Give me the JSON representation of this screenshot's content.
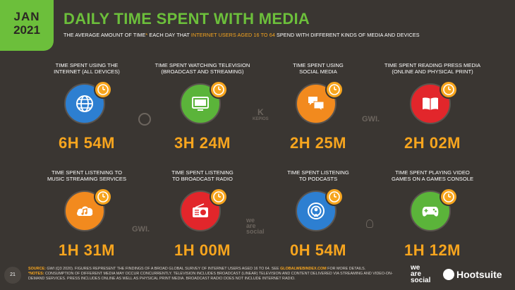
{
  "badge": {
    "month": "JAN",
    "year": "2021"
  },
  "title": "DAILY TIME SPENT WITH MEDIA",
  "subtitle": {
    "part1": "THE AVERAGE AMOUNT OF TIME",
    "asterisk": "*",
    "part2": " EACH DAY THAT ",
    "highlight": "INTERNET USERS AGED 16 TO 64",
    "part3": " SPEND WITH DIFFERENT KINDS OF MEDIA AND DEVICES"
  },
  "colors": {
    "accent": "#f7a51e",
    "green": "#6cbf3b",
    "background": "#3a3632"
  },
  "cards": [
    {
      "label1": "TIME SPENT USING THE",
      "label2": "INTERNET (ALL DEVICES)",
      "value": "6H 54M",
      "icon": "globe-icon",
      "color": "#2d7fd1"
    },
    {
      "label1": "TIME SPENT WATCHING TELEVISION",
      "label2": "(BROADCAST AND STREAMING)",
      "value": "3H 24M",
      "icon": "television-icon",
      "color": "#5bb43a"
    },
    {
      "label1": "TIME SPENT USING",
      "label2": "SOCIAL MEDIA",
      "value": "2H 25M",
      "icon": "chat-bubbles-icon",
      "color": "#f28a1e"
    },
    {
      "label1": "TIME SPENT READING PRESS MEDIA",
      "label2": "(ONLINE AND PHYSICAL PRINT)",
      "value": "2H 02M",
      "icon": "book-icon",
      "color": "#e2262b"
    },
    {
      "label1": "TIME SPENT LISTENING TO",
      "label2": "MUSIC STREAMING SERVICES",
      "value": "1H 31M",
      "icon": "music-cloud-icon",
      "color": "#f28a1e"
    },
    {
      "label1": "TIME SPENT LISTENING",
      "label2": "TO BROADCAST RADIO",
      "value": "1H 00M",
      "icon": "radio-icon",
      "color": "#e2262b"
    },
    {
      "label1": "TIME SPENT LISTENING",
      "label2": "TO PODCASTS",
      "value": "0H 54M",
      "icon": "podcast-icon",
      "color": "#2d7fd1"
    },
    {
      "label1": "TIME SPENT PLAYING VIDEO",
      "label2": "GAMES ON A GAMES CONSOLE",
      "value": "1H 12M",
      "icon": "gamepad-icon",
      "color": "#5bb43a"
    }
  ],
  "watermarks": {
    "gwi1": "GWI.",
    "gwi2": "GWI.",
    "kepios": "KEPIOS",
    "wearesocial_line1": "we",
    "wearesocial_line2": "are",
    "wearesocial_line3": "social"
  },
  "footer": {
    "source_label": "SOURCE:",
    "source_text": " GWI (Q3 2020). FIGURES REPRESENT THE FINDINGS OF A BROAD GLOBAL SURVEY OF INTERNET USERS AGED 16 TO 64. SEE ",
    "source_link": "GLOBALWEBINDEX.COM",
    "source_tail": " FOR MORE DETAILS.",
    "notes_label": "*NOTES:",
    "notes_text": " CONSUMPTION OF DIFFERENT MEDIA MAY OCCUR CONCURRENTLY. TELEVISION INCLUDES BROADCAST (LINEAR) TELEVISION AND CONTENT DELIVERED VIA STREAMING AND VIDEO-ON-DEMAND SERVICES. PRESS INCLUDES ONLINE AS WELL AS PHYSICAL PRINT MEDIA. BROADCAST RADIO DOES NOT INCLUDE INTERNET RADIO."
  },
  "page_number": "21",
  "brand": {
    "wearesocial_1": "we",
    "wearesocial_2": "are",
    "wearesocial_3": "social",
    "hootsuite": "Hootsuite"
  }
}
